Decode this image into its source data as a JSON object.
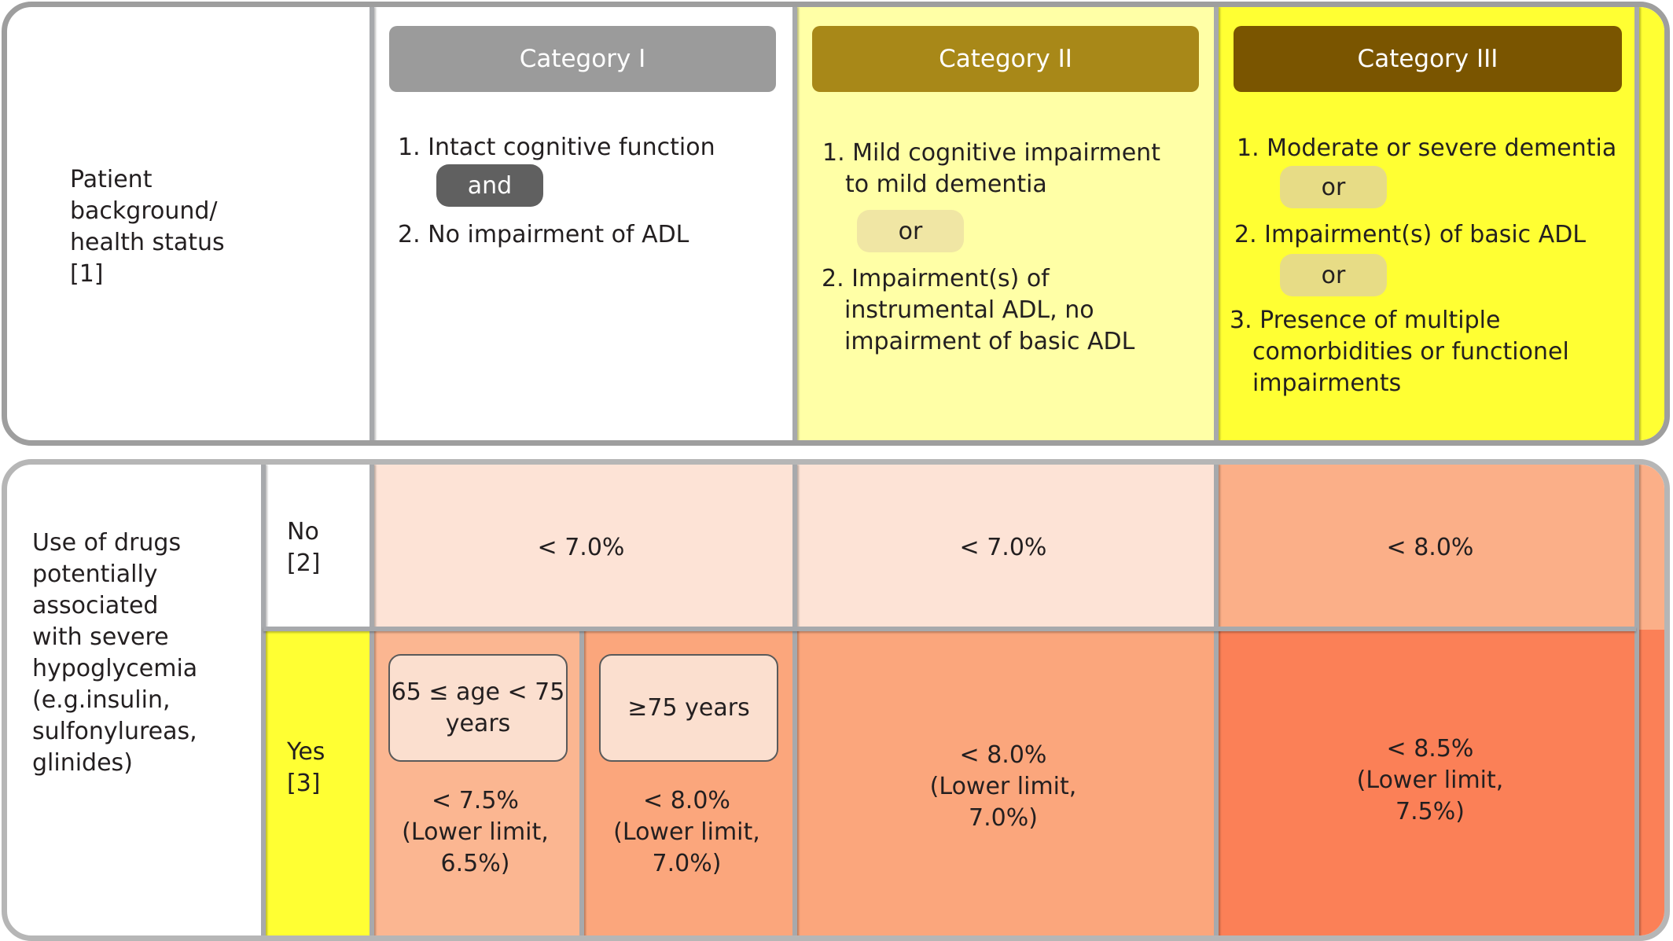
{
  "top": {
    "row_label": [
      "Patient",
      "background/",
      "health status",
      "[1]"
    ],
    "categories": [
      {
        "title": "Category I",
        "items": [
          "1. Intact cognitive function",
          "2. No impairment of ADL"
        ],
        "connector": "and",
        "color": "#9b9b9b"
      },
      {
        "title": "Category II",
        "item1": [
          "1. Mild cognitive impairment",
          "to mild dementia"
        ],
        "connector": "or",
        "item2": [
          "2. Impairment(s) of",
          "instrumental ADL, no",
          "impairment of basic ADL"
        ],
        "color": "#a88818"
      },
      {
        "title": "Category III",
        "item1": "1. Moderate or severe dementia",
        "connector1": "or",
        "item2": "2. Impairment(s) of basic ADL",
        "connector2": "or",
        "item3": [
          "3. Presence of multiple",
          "comorbidities or functionel",
          "impairments"
        ],
        "color": "#7a5500"
      }
    ]
  },
  "bottom": {
    "row_label": [
      "Use of drugs",
      "potentially",
      "associated",
      "with severe",
      "hypoglycemia",
      "(e.g.insulin,",
      "sulfonylureas,",
      "glinides)"
    ],
    "no_label": [
      "No",
      "[2]"
    ],
    "yes_label": [
      "Yes",
      "[3]"
    ],
    "no_row": [
      "< 7.0%",
      "< 7.0%",
      "< 8.0%"
    ],
    "yes_row": {
      "cat1_sub": [
        {
          "age": [
            "65 ≤ age < 75",
            "years"
          ],
          "target": [
            "< 7.5%",
            "(Lower limit,",
            "6.5%)"
          ]
        },
        {
          "age": [
            "≥75 years"
          ],
          "target": [
            "< 8.0%",
            "(Lower limit,",
            "7.0%)"
          ]
        }
      ],
      "cat2": [
        "< 8.0%",
        "(Lower limit,",
        "7.0%)"
      ],
      "cat3": [
        "< 8.5%",
        "(Lower limit,",
        "7.5%)"
      ]
    }
  },
  "colors": {
    "cat2_bg": "#ffffa6",
    "cat3_bg": "#ffff33",
    "no_light": "#fde3d6",
    "no_dark": "#fbaf88",
    "yes_light": "#fbb691",
    "yes_mid": "#fba67c",
    "yes_dark": "#fb8057"
  }
}
